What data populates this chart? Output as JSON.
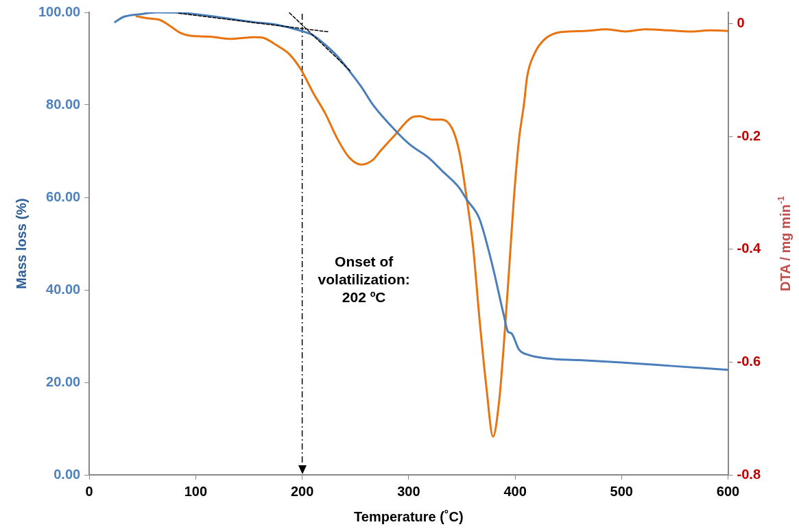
{
  "chart_data": {
    "type": "line",
    "xlabel": "Temperature (˚C)",
    "ylabel": "Mass loss (%)",
    "y2label": "DTA / mg min$^{-1}$",
    "xlim": [
      0,
      600
    ],
    "xticks": [
      0,
      100,
      200,
      300,
      400,
      500,
      600
    ],
    "ylim": [
      0,
      100
    ],
    "yticks": [
      {
        "value": 0,
        "label": "0.00"
      },
      {
        "value": 20,
        "label": "20.00"
      },
      {
        "value": 40,
        "label": "40.00"
      },
      {
        "value": 60,
        "label": "60.00"
      },
      {
        "value": 80,
        "label": "80.00"
      },
      {
        "value": 100,
        "label": "100.00"
      }
    ],
    "y2lim": [
      -0.8,
      0.02
    ],
    "y2ticks": [
      -0.8,
      -0.6,
      -0.4,
      -0.2,
      0
    ],
    "grid": false,
    "legend": false,
    "marker": "none",
    "series": [
      {
        "color": "#4a7ebb",
        "axis": "y",
        "x": [
          24.2,
          32,
          47.9,
          63.7,
          86.2,
          120,
          153.8,
          176.5,
          199,
          210.4,
          221.6,
          233,
          244,
          255.5,
          266.8,
          286.9,
          300.7,
          319.6,
          331.1,
          347.4,
          354.6,
          366.4,
          378,
          389.4,
          393.2,
          396.6,
          403.6,
          413,
          429.3,
          460,
          500,
          550,
          600
        ],
        "values": [
          97.9,
          99.0,
          99.6,
          100.0,
          99.9,
          99.0,
          97.9,
          97.3,
          96.0,
          95.0,
          93.0,
          90.5,
          87.4,
          83.9,
          79.9,
          74.6,
          71.5,
          68.4,
          65.8,
          62.1,
          59.5,
          55.4,
          45.9,
          34.5,
          31.0,
          30.6,
          27.1,
          25.9,
          25.2,
          24.8,
          24.3,
          23.5,
          22.7
        ]
      },
      {
        "color": "#e8730f",
        "axis": "y2",
        "x": [
          44.5,
          56.6,
          65.7,
          75,
          86.2,
          97.5,
          113.3,
          131.4,
          156.2,
          163,
          176.5,
          187.8,
          199,
          210.4,
          221.6,
          233,
          244,
          255.5,
          266.8,
          272.9,
          286.9,
          303.2,
          310,
          321.9,
          331,
          340.6,
          347.6,
          354.6,
          360.5,
          366.4,
          373.2,
          379.2,
          385,
          389.6,
          394.3,
          398.8,
          403.6,
          408.3,
          411.3,
          418,
          427,
          442.9,
          465.4,
          485.7,
          503.8,
          521.9,
          544.4,
          564.8,
          582.9,
          600
        ],
        "values": [
          0.013,
          0.009,
          0.007,
          -0.003,
          -0.017,
          -0.022,
          -0.023,
          -0.027,
          -0.024,
          -0.025,
          -0.039,
          -0.054,
          -0.082,
          -0.123,
          -0.159,
          -0.204,
          -0.237,
          -0.25,
          -0.241,
          -0.227,
          -0.198,
          -0.166,
          -0.164,
          -0.17,
          -0.17,
          -0.185,
          -0.227,
          -0.311,
          -0.395,
          -0.521,
          -0.648,
          -0.732,
          -0.669,
          -0.564,
          -0.437,
          -0.311,
          -0.206,
          -0.143,
          -0.094,
          -0.054,
          -0.029,
          -0.015,
          -0.013,
          -0.01,
          -0.014,
          -0.01,
          -0.012,
          -0.014,
          -0.012,
          -0.013
        ]
      },
      {
        "color": "#000000",
        "axis": "y",
        "line_style": "dashed",
        "x": [
          84,
          224
        ],
        "values": [
          99.8,
          95.8
        ]
      },
      {
        "color": "#000000",
        "axis": "y",
        "line_style": "dashed",
        "x": [
          188,
          245
        ],
        "values": [
          99.9,
          87.4
        ]
      }
    ],
    "ref_lines": [
      {
        "axis": "x",
        "value": 200,
        "color": "#000000",
        "line_style": "dashed"
      }
    ],
    "annotations": [
      "Onset of\nvolatilization:\n202 ºC"
    ]
  }
}
